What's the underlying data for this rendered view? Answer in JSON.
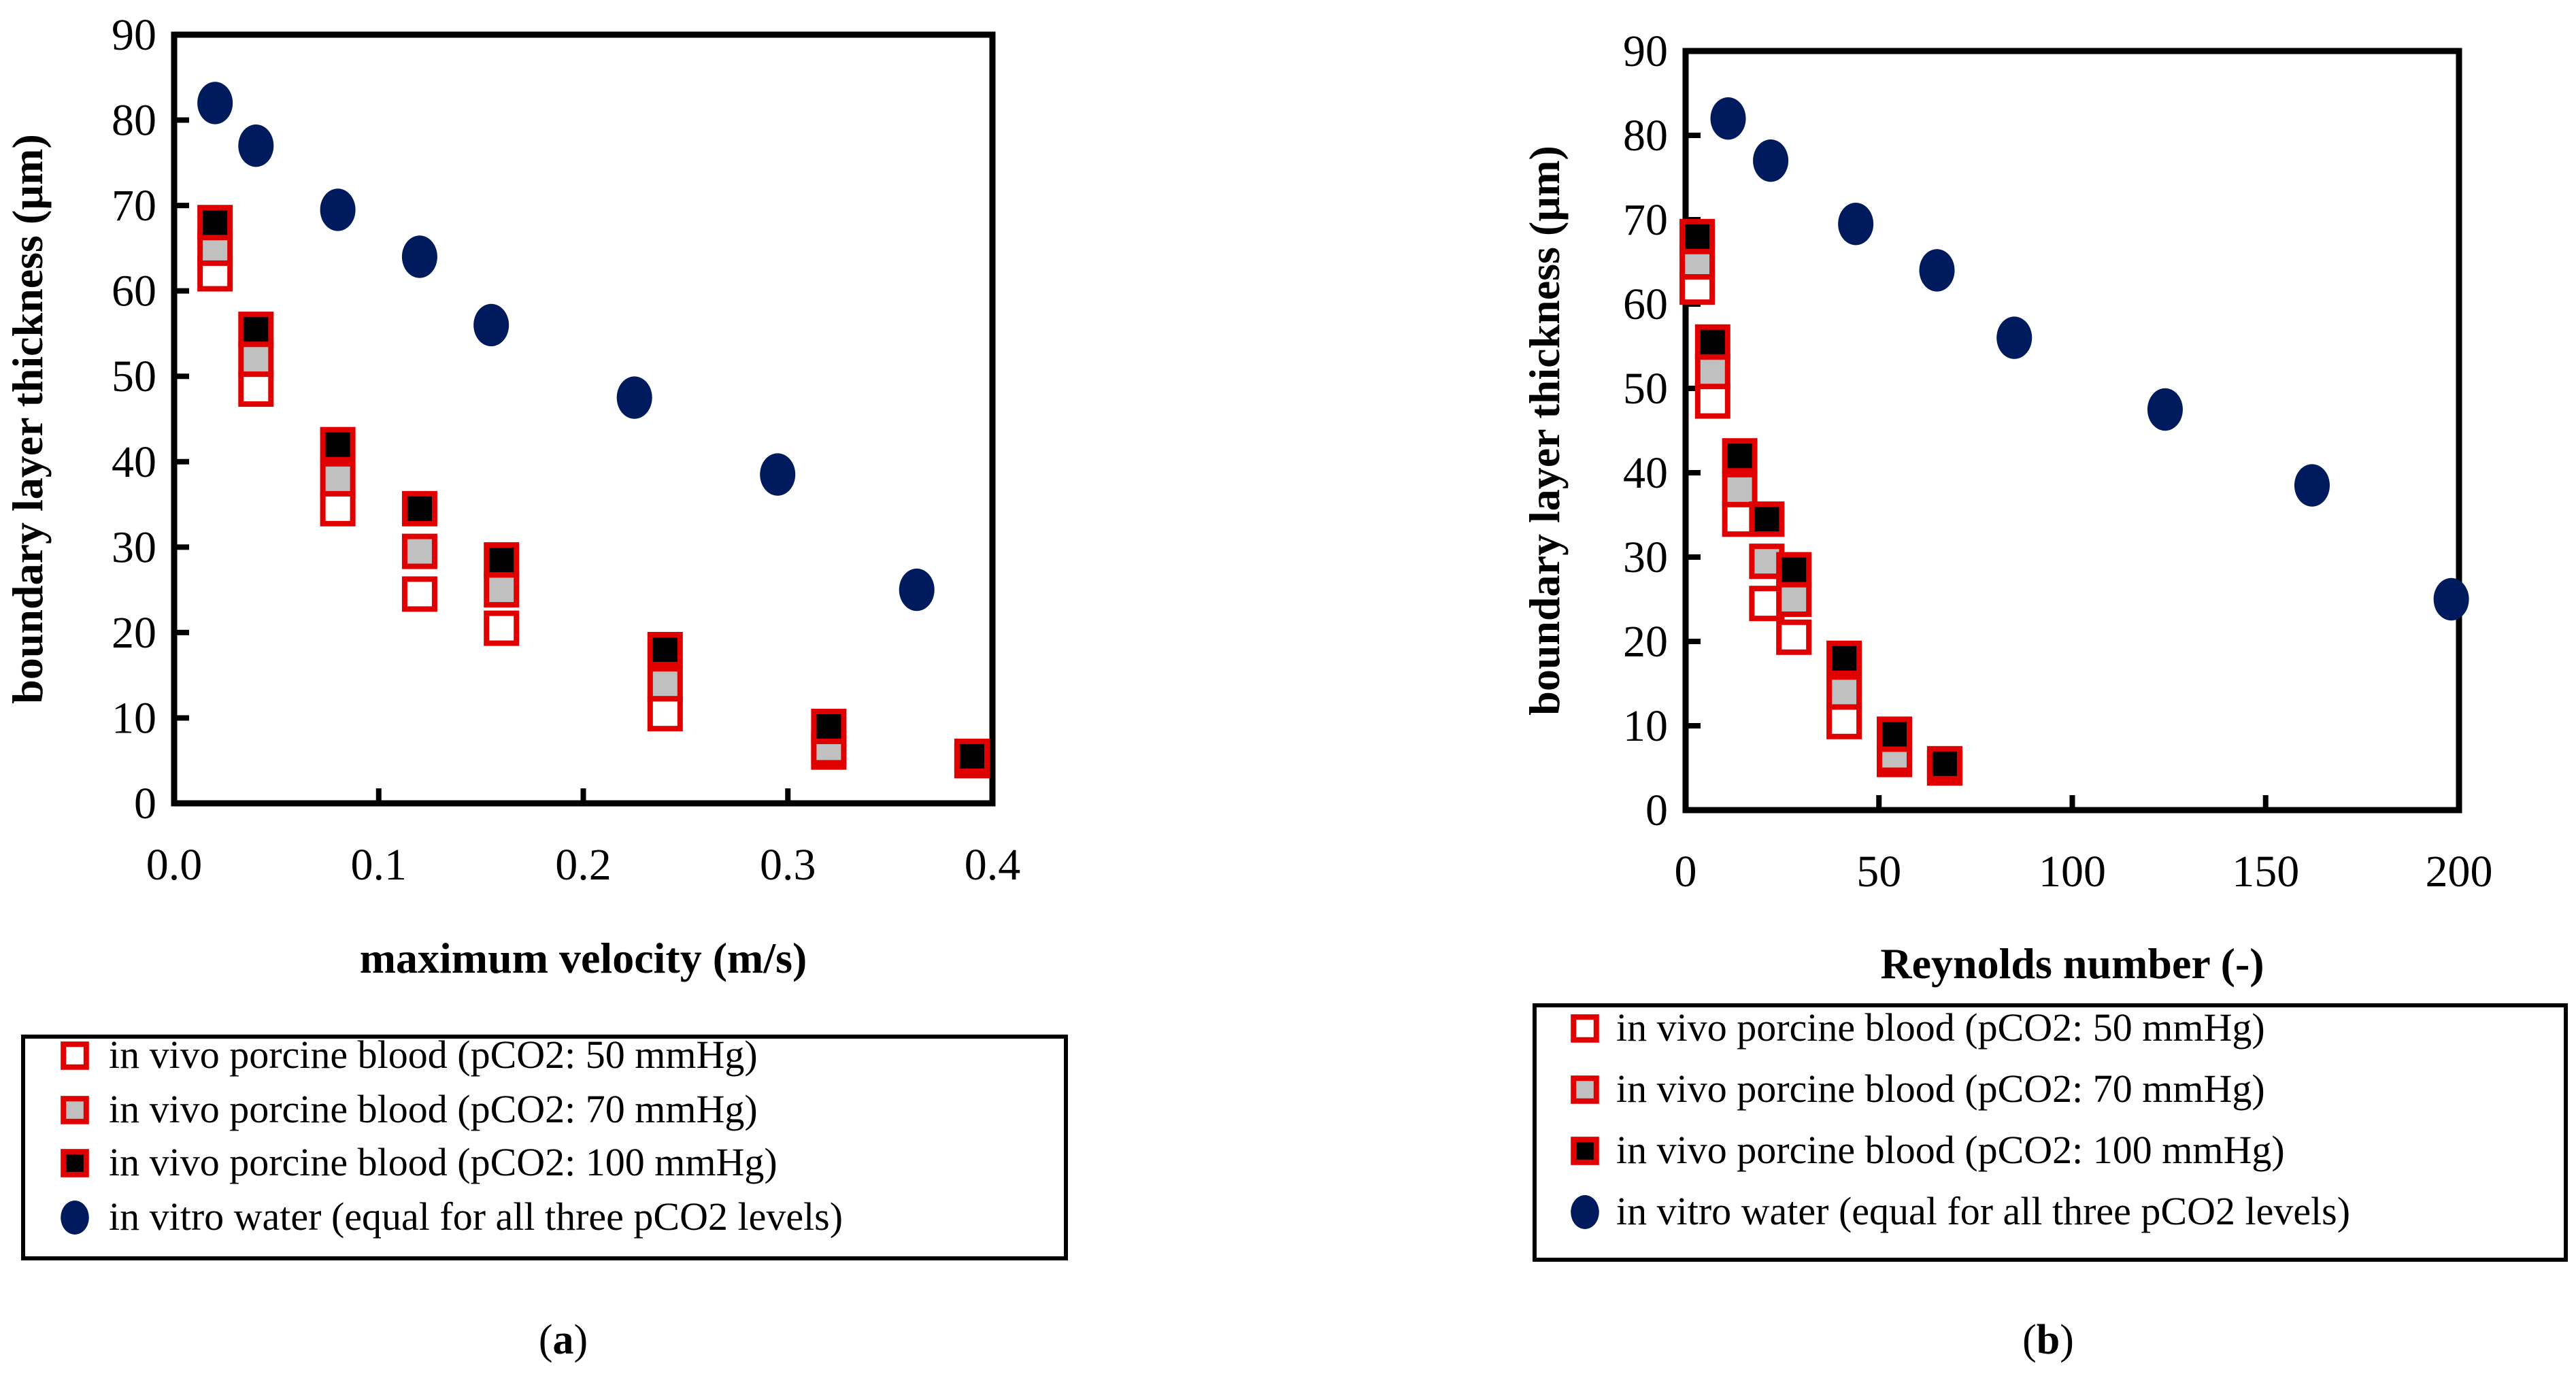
{
  "colors": {
    "red": "#e00000",
    "gray": "#c0c0c0",
    "black": "#000000",
    "navy": "#001a5e"
  },
  "chart_data": [
    {
      "type": "scatter",
      "caption": "(a)",
      "caption_letter": "a",
      "xlabel": "maximum velocity (m/s)",
      "ylabel": "boundary layer thickness (µm)",
      "xlim": [
        0,
        0.4
      ],
      "ylim": [
        0,
        90
      ],
      "xticks": [
        "0.0",
        "0.1",
        "0.2",
        "0.3",
        "0.4"
      ],
      "xtick_values": [
        0,
        0.1,
        0.2,
        0.3,
        0.4
      ],
      "yticks": [
        "0",
        "10",
        "20",
        "30",
        "40",
        "50",
        "60",
        "70",
        "80",
        "90"
      ],
      "ytick_values": [
        0,
        10,
        20,
        30,
        40,
        50,
        60,
        70,
        80,
        90
      ],
      "legend_position": "below",
      "series": [
        {
          "name": "in vivo porcine blood (pCO2: 50 mmHg)",
          "marker": "open-square",
          "x": [
            0.02,
            0.04,
            0.08,
            0.12,
            0.16,
            0.24,
            0.32,
            0.39
          ],
          "y": [
            62,
            48.5,
            34.5,
            24.5,
            20.5,
            10.5,
            6,
            5
          ]
        },
        {
          "name": "in vivo porcine blood (pCO2: 70 mmHg)",
          "marker": "gray-square",
          "x": [
            0.02,
            0.04,
            0.08,
            0.12,
            0.16,
            0.24,
            0.32,
            0.39
          ],
          "y": [
            65,
            52,
            38,
            29.5,
            25,
            14,
            6.5,
            5
          ]
        },
        {
          "name": "in vivo porcine blood (pCO2: 100 mmHg)",
          "marker": "black-square",
          "x": [
            0.02,
            0.04,
            0.08,
            0.12,
            0.16,
            0.24,
            0.32,
            0.39
          ],
          "y": [
            68,
            55.5,
            42,
            34.5,
            28.5,
            18,
            9,
            5.5
          ]
        },
        {
          "name": "in vitro water (equal for all three pCO2 levels)",
          "marker": "circle",
          "x": [
            0.02,
            0.04,
            0.08,
            0.12,
            0.155,
            0.225,
            0.295,
            0.363
          ],
          "y": [
            82,
            77,
            69.5,
            64,
            56,
            47.5,
            38.5,
            25
          ]
        }
      ]
    },
    {
      "type": "scatter",
      "caption": "(b)",
      "caption_letter": "b",
      "xlabel": "Reynolds number (-)",
      "ylabel": "boundary layer thickness (µm)",
      "xlim": [
        0,
        200
      ],
      "ylim": [
        0,
        90
      ],
      "xticks": [
        "0",
        "50",
        "100",
        "150",
        "200"
      ],
      "xtick_values": [
        0,
        50,
        100,
        150,
        200
      ],
      "yticks": [
        "0",
        "10",
        "20",
        "30",
        "40",
        "50",
        "60",
        "70",
        "80",
        "90"
      ],
      "ytick_values": [
        0,
        10,
        20,
        30,
        40,
        50,
        60,
        70,
        80,
        90
      ],
      "legend_position": "below",
      "series": [
        {
          "name": "in vivo porcine blood (pCO2: 50 mmHg)",
          "marker": "open-square",
          "x": [
            3,
            7,
            14,
            21,
            28,
            41,
            54,
            67
          ],
          "y": [
            62,
            48.5,
            34.5,
            24.5,
            20.5,
            10.5,
            6,
            5
          ]
        },
        {
          "name": "in vivo porcine blood (pCO2: 70 mmHg)",
          "marker": "gray-square",
          "x": [
            3,
            7,
            14,
            21,
            28,
            41,
            54,
            67
          ],
          "y": [
            65,
            52,
            38,
            29.5,
            25,
            14,
            6.5,
            5
          ]
        },
        {
          "name": "in vivo porcine blood (pCO2: 100 mmHg)",
          "marker": "black-square",
          "x": [
            3,
            7,
            14,
            21,
            28,
            41,
            54,
            67
          ],
          "y": [
            68,
            55.5,
            42,
            34.5,
            28.5,
            18,
            9,
            5.5
          ]
        },
        {
          "name": "in vitro water (equal for all three pCO2 levels)",
          "marker": "circle",
          "x": [
            11,
            22,
            44,
            65,
            85,
            124,
            162,
            198
          ],
          "y": [
            82,
            77,
            69.5,
            64,
            56,
            47.5,
            38.5,
            25
          ]
        }
      ]
    }
  ]
}
